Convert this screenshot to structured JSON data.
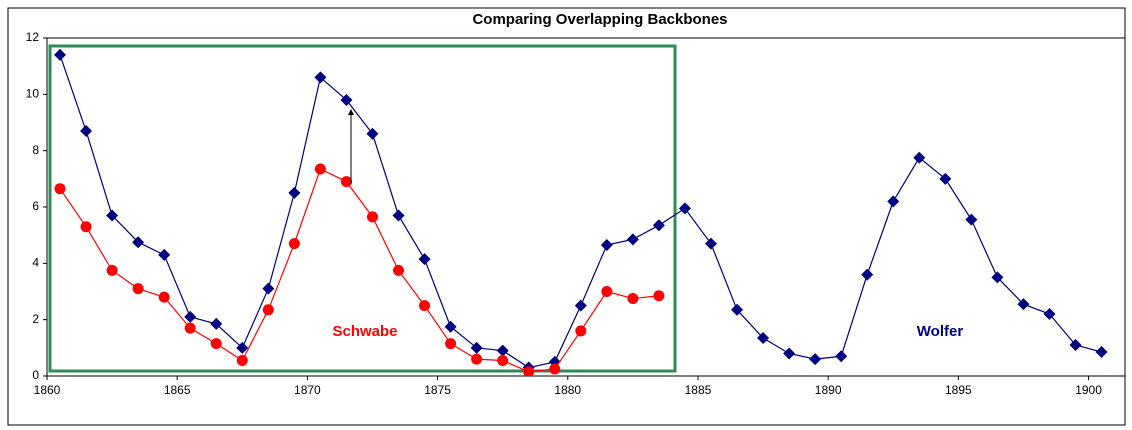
{
  "chart_data": {
    "type": "line",
    "title": "Comparing Overlapping Backbones",
    "xlim": [
      1860,
      1901.4
    ],
    "xticks": [
      1860,
      1865,
      1870,
      1875,
      1880,
      1885,
      1890,
      1895,
      1900
    ],
    "ylim": [
      0,
      12
    ],
    "yticks": [
      0,
      2,
      4,
      6,
      8,
      10,
      12
    ],
    "annotations": [
      "Schwabe",
      "Wolfer"
    ],
    "series": [
      {
        "name": "Wolfer",
        "color": "#000080",
        "marker": "diamond",
        "x": [
          1860.5,
          1861.5,
          1862.5,
          1863.5,
          1864.5,
          1865.5,
          1866.5,
          1867.5,
          1868.5,
          1869.5,
          1870.5,
          1871.5,
          1872.5,
          1873.5,
          1874.5,
          1875.5,
          1876.5,
          1877.5,
          1878.5,
          1879.5,
          1880.5,
          1881.5,
          1882.5,
          1883.5,
          1884.5,
          1885.5,
          1886.5,
          1887.5,
          1888.5,
          1889.5,
          1890.5,
          1891.5,
          1892.5,
          1893.5,
          1894.5,
          1895.5,
          1896.5,
          1897.5,
          1898.5,
          1899.5,
          1900.5
        ],
        "values": [
          11.4,
          8.7,
          5.7,
          4.75,
          4.3,
          2.1,
          1.85,
          1.0,
          3.1,
          6.5,
          10.6,
          9.8,
          8.6,
          5.7,
          4.15,
          1.75,
          1.0,
          0.9,
          0.3,
          0.5,
          2.5,
          4.65,
          4.85,
          5.35,
          5.95,
          4.7,
          2.35,
          1.35,
          0.8,
          0.6,
          0.7,
          3.6,
          6.2,
          7.75,
          7.0,
          5.55,
          3.5,
          2.55,
          2.2,
          1.1,
          0.85
        ]
      },
      {
        "name": "Schwabe",
        "color": "#ff0000",
        "marker": "circle",
        "x": [
          1860.5,
          1861.5,
          1862.5,
          1863.5,
          1864.5,
          1865.5,
          1866.5,
          1867.5,
          1868.5,
          1869.5,
          1870.5,
          1871.5,
          1872.5,
          1873.5,
          1874.5,
          1875.5,
          1876.5,
          1877.5,
          1878.5,
          1879.5,
          1880.5,
          1881.5,
          1882.5,
          1883.5
        ],
        "values": [
          6.65,
          5.3,
          3.75,
          3.1,
          2.8,
          1.7,
          1.15,
          0.55,
          2.35,
          4.7,
          7.35,
          6.9,
          5.65,
          3.75,
          2.5,
          1.15,
          0.6,
          0.55,
          0.15,
          0.25,
          1.6,
          3.0,
          2.75,
          2.85
        ]
      }
    ]
  }
}
